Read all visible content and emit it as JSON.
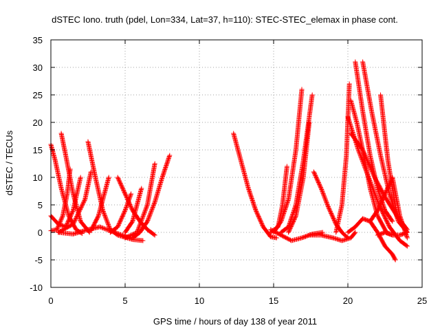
{
  "chart_data": {
    "type": "scatter",
    "title": "dSTEC Iono. truth (pdel, Lon=334, Lat=37, h=110): STEC-STEC_elemax in phase cont.",
    "xlabel": "GPS time / hours of day 138 of year 2011",
    "ylabel": "dSTEC  / TECUs",
    "xlim": [
      0,
      25
    ],
    "ylim": [
      -10,
      35
    ],
    "x_ticks": [
      0,
      5,
      10,
      15,
      20,
      25
    ],
    "y_ticks": [
      -10,
      -5,
      0,
      5,
      10,
      15,
      20,
      25,
      30,
      35
    ],
    "grid": true,
    "marker": "plus",
    "color": "#ff0000",
    "series": [
      {
        "x": [
          0.0,
          0.3,
          0.7,
          1.2,
          1.7,
          2.1
        ],
        "y": [
          16.0,
          13.0,
          8.0,
          3.0,
          0.5,
          -0.2
        ]
      },
      {
        "x": [
          0.0,
          0.4,
          0.8,
          1.1,
          1.3
        ],
        "y": [
          0.3,
          0.5,
          3.0,
          7.0,
          11.5
        ]
      },
      {
        "x": [
          0.0,
          0.5,
          1.0,
          1.5,
          2.0
        ],
        "y": [
          3.0,
          1.5,
          1.0,
          4.0,
          10.0
        ]
      },
      {
        "x": [
          0.7,
          1.0,
          1.5,
          2.0,
          2.6
        ],
        "y": [
          18.0,
          14.0,
          7.0,
          2.0,
          0.0
        ]
      },
      {
        "x": [
          2.5,
          3.0,
          3.5,
          4.0,
          4.5,
          5.5,
          6.2
        ],
        "y": [
          16.5,
          10.0,
          4.0,
          0.5,
          -0.5,
          -1.3,
          -1.5
        ]
      },
      {
        "x": [
          0.5,
          1.5,
          2.5,
          3.3,
          4.3,
          5.3
        ],
        "y": [
          0.0,
          -0.3,
          0.5,
          1.0,
          0.0,
          -1.0
        ]
      },
      {
        "x": [
          0.5,
          1.5,
          2.3,
          2.7
        ],
        "y": [
          0.0,
          1.5,
          6.0,
          11.0
        ]
      },
      {
        "x": [
          2.7,
          3.2,
          3.6,
          3.9
        ],
        "y": [
          0.3,
          3.0,
          7.0,
          10.0
        ]
      },
      {
        "x": [
          4.5,
          5.0,
          5.5,
          6.0,
          6.5,
          7.0
        ],
        "y": [
          10.0,
          7.0,
          4.0,
          2.0,
          0.5,
          -0.5
        ]
      },
      {
        "x": [
          4.0,
          4.5,
          5.0,
          5.4
        ],
        "y": [
          0.0,
          1.0,
          4.0,
          7.0
        ]
      },
      {
        "x": [
          5.0,
          5.5,
          5.8,
          6.1
        ],
        "y": [
          0.0,
          2.0,
          5.0,
          8.0
        ]
      },
      {
        "x": [
          5.5,
          6.0,
          6.5,
          7.0,
          7.5,
          8.0
        ],
        "y": [
          -1.0,
          0.0,
          2.0,
          5.5,
          10.0,
          14.0
        ]
      },
      {
        "x": [
          5.0,
          5.8,
          6.5,
          7.0
        ],
        "y": [
          -1.0,
          0.0,
          5.0,
          12.5
        ]
      },
      {
        "x": [
          12.3,
          12.8,
          13.3,
          13.8,
          14.3,
          14.8,
          15.2
        ],
        "y": [
          18.0,
          13.0,
          8.0,
          4.0,
          1.0,
          -0.8,
          -1.0
        ]
      },
      {
        "x": [
          14.8,
          15.3,
          15.6,
          15.9
        ],
        "y": [
          0.0,
          1.0,
          5.0,
          12.0
        ]
      },
      {
        "x": [
          15.0,
          15.5,
          16.0,
          16.5,
          16.9
        ],
        "y": [
          0.0,
          2.0,
          6.0,
          15.0,
          26.0
        ]
      },
      {
        "x": [
          15.5,
          16.0,
          16.5,
          17.0,
          17.6
        ],
        "y": [
          0.0,
          1.0,
          5.0,
          13.0,
          25.0
        ]
      },
      {
        "x": [
          16.0,
          16.5,
          17.0,
          17.4
        ],
        "y": [
          0.0,
          3.0,
          10.0,
          20.0
        ]
      },
      {
        "x": [
          14.8,
          15.5,
          16.2,
          16.9,
          17.6,
          18.3
        ],
        "y": [
          0.5,
          -0.5,
          -1.5,
          -1.0,
          -0.3,
          0.0
        ]
      },
      {
        "x": [
          17.7,
          18.2,
          18.7,
          19.2,
          19.6,
          20.0
        ],
        "y": [
          11.0,
          8.0,
          4.5,
          1.5,
          0.0,
          -1.0
        ]
      },
      {
        "x": [
          17.4,
          18.2,
          19.0,
          19.6,
          20.2,
          20.5
        ],
        "y": [
          -0.5,
          -0.5,
          -1.0,
          -1.5,
          -1.0,
          0.0
        ]
      },
      {
        "x": [
          19.2,
          19.6,
          19.9,
          20.1
        ],
        "y": [
          0.0,
          5.0,
          14.0,
          27.0
        ]
      },
      {
        "x": [
          20.0,
          20.5,
          21.0,
          21.5,
          22.0,
          22.5,
          23.0,
          23.2
        ],
        "y": [
          0.0,
          1.0,
          2.5,
          2.0,
          0.0,
          -2.5,
          -4.0,
          -5.0
        ]
      },
      {
        "x": [
          20.2,
          20.6,
          21.0,
          21.5,
          22.0,
          22.6,
          23.0
        ],
        "y": [
          24.0,
          20.0,
          15.0,
          8.0,
          3.0,
          0.0,
          -0.5
        ]
      },
      {
        "x": [
          20.5,
          21.0,
          21.5,
          22.0,
          22.5,
          23.0
        ],
        "y": [
          31.0,
          22.0,
          14.0,
          8.0,
          4.0,
          2.0
        ]
      },
      {
        "x": [
          20.0,
          20.7,
          21.4,
          22.1,
          22.8,
          23.5,
          24.0
        ],
        "y": [
          21.0,
          15.0,
          10.0,
          5.0,
          1.0,
          -1.5,
          -2.5
        ]
      },
      {
        "x": [
          21.0,
          21.6,
          22.2,
          22.8,
          23.4,
          24.0
        ],
        "y": [
          31.0,
          22.0,
          14.0,
          7.0,
          2.0,
          0.0
        ]
      },
      {
        "x": [
          20.2,
          21.0,
          21.8,
          22.6,
          23.3,
          24.0
        ],
        "y": [
          18.0,
          15.0,
          10.0,
          6.0,
          3.0,
          0.5
        ]
      },
      {
        "x": [
          22.2,
          22.7,
          23.3,
          24.0
        ],
        "y": [
          25.0,
          13.0,
          3.0,
          0.0
        ]
      },
      {
        "x": [
          21.5,
          22.0,
          22.5,
          23.0,
          23.5,
          24.0
        ],
        "y": [
          2.0,
          4.0,
          7.0,
          10.0,
          3.0,
          -1.0
        ]
      },
      {
        "x": [
          22.0,
          22.5,
          23.0,
          23.5,
          24.0
        ],
        "y": [
          -0.5,
          0.0,
          -0.5,
          -0.5,
          0.0
        ]
      }
    ]
  }
}
